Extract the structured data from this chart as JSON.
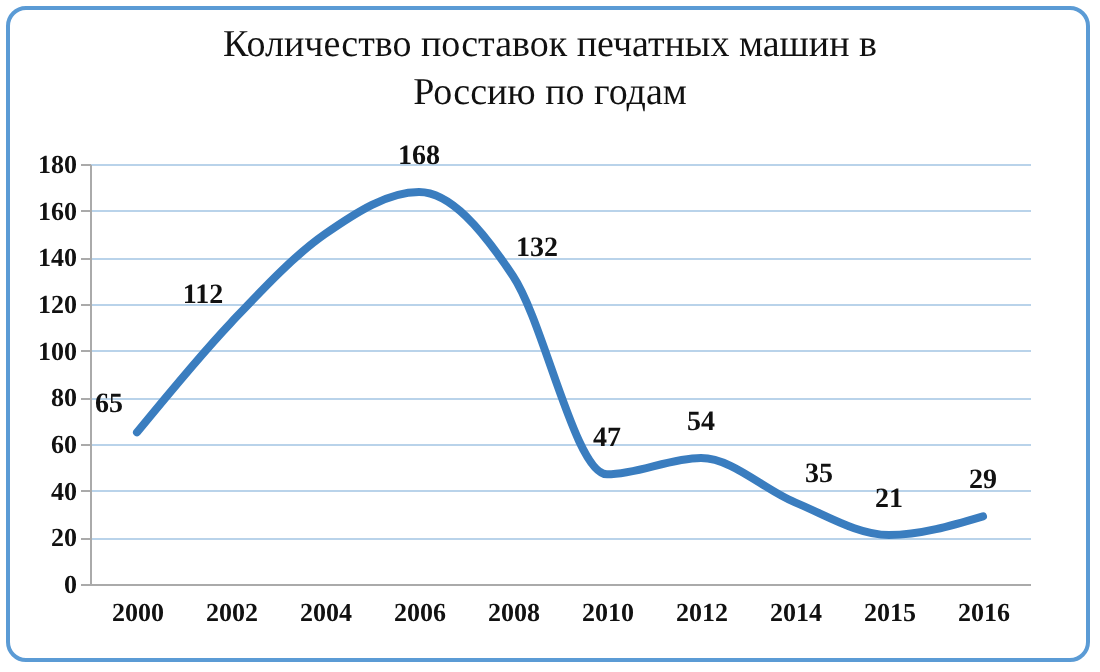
{
  "chart_data": {
    "type": "line",
    "title": "Количество поставок печатных машин в Россию по годам",
    "categories": [
      "2000",
      "2002",
      "2004",
      "2006",
      "2008",
      "2010",
      "2012",
      "2014",
      "2015",
      "2016"
    ],
    "series": [
      {
        "color": "#3a7dbf",
        "values": [
          65,
          112,
          150,
          168,
          132,
          47,
          54,
          35,
          21,
          29
        ],
        "value_labels": [
          "65",
          "112",
          null,
          "168",
          "132",
          "47",
          "54",
          "35",
          "21",
          "29"
        ]
      }
    ],
    "ylim": [
      0,
      180
    ],
    "yticks": [
      0,
      20,
      40,
      60,
      80,
      100,
      120,
      140,
      160,
      180
    ],
    "grid": "y",
    "marker": "none",
    "line_style": "solid"
  }
}
